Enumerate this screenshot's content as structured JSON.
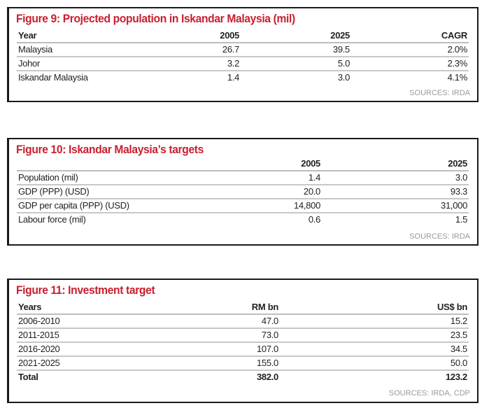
{
  "figures": [
    {
      "title": "Figure 9: Projected population in Iskandar Malaysia (mil)",
      "headers": [
        "Year",
        "2005",
        "2025",
        "CAGR"
      ],
      "rows": [
        [
          "Malaysia",
          "26.7",
          "39.5",
          "2.0%"
        ],
        [
          "Johor",
          "3.2",
          "5.0",
          "2.3%"
        ],
        [
          "Iskandar Malaysia",
          "1.4",
          "3.0",
          "4.1%"
        ]
      ],
      "source": "SOURCES: IRDA"
    },
    {
      "title": "Figure 10: Iskandar Malaysia’s targets",
      "headers": [
        "",
        "2005",
        "2025"
      ],
      "rows": [
        [
          "Population (mil)",
          "1.4",
          "3.0"
        ],
        [
          "GDP (PPP) (USD)",
          "20.0",
          "93.3"
        ],
        [
          "GDP per capita (PPP) (USD)",
          "14,800",
          "31,000"
        ],
        [
          "Labour force (mil)",
          "0.6",
          "1.5"
        ]
      ],
      "source": "SOURCES: IRDA"
    },
    {
      "title": "Figure 11: Investment target",
      "headers": [
        "Years",
        "RM bn",
        "US$ bn"
      ],
      "rows": [
        [
          "2006-2010",
          "47.0",
          "15.2"
        ],
        [
          "2011-2015",
          "73.0",
          "23.5"
        ],
        [
          "2016-2020",
          "107.0",
          "34.5"
        ],
        [
          "2021-2025",
          "155.0",
          "50.0"
        ],
        [
          "Total",
          "382.0",
          "123.2"
        ]
      ],
      "source": "SOURCES: IRDA, CDP"
    }
  ],
  "colors": {
    "title": "#c8202f",
    "source": "#9a9a9a",
    "border": "#1a1a1a"
  }
}
